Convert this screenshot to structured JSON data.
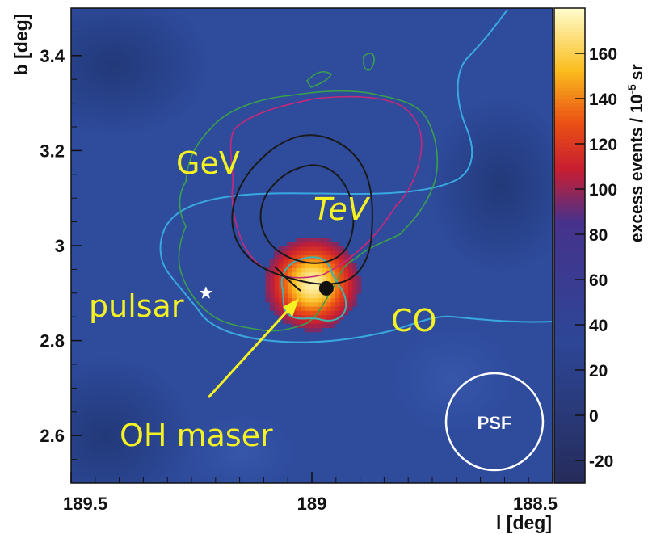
{
  "chart_data": {
    "type": "heatmap",
    "title": "",
    "xlabel": "l [deg]",
    "ylabel": "b [deg]",
    "x_direction": "reversed",
    "xlim": [
      189.5,
      188.5
    ],
    "ylim": [
      2.5,
      3.5
    ],
    "x_ticks": [
      "189.5",
      "189",
      "188.5"
    ],
    "y_ticks": [
      "2.6",
      "2.8",
      "3",
      "3.2",
      "3.4"
    ],
    "colorbar": {
      "label": "excess events / 10",
      "label_exponent": "-5",
      "label_unit": "sr",
      "range": [
        -30,
        180
      ],
      "ticks": [
        "-20",
        "0",
        "20",
        "40",
        "60",
        "80",
        "100",
        "120",
        "140",
        "160"
      ]
    },
    "excess_source": {
      "center_l": 189.0,
      "center_b": 2.92,
      "peak": 175,
      "sigma_deg": 0.055
    },
    "pulsar": {
      "l": 189.22,
      "b": 2.9
    },
    "oh_maser": {
      "l": 188.97,
      "b": 2.91
    },
    "annotations": {
      "gev": "GeV",
      "tev": "TeV",
      "pulsar": "pulsar",
      "co": "CO",
      "oh_maser": "OH maser",
      "psf": "PSF"
    },
    "colors": {
      "co_contour": "#3aa8e0",
      "gev_contour": "#3aa04a",
      "radio_contour": "#c8287a",
      "tev_contour": "#1a1a1a",
      "annotation_text": "#f4f223",
      "background": "#2d4a9a"
    }
  }
}
